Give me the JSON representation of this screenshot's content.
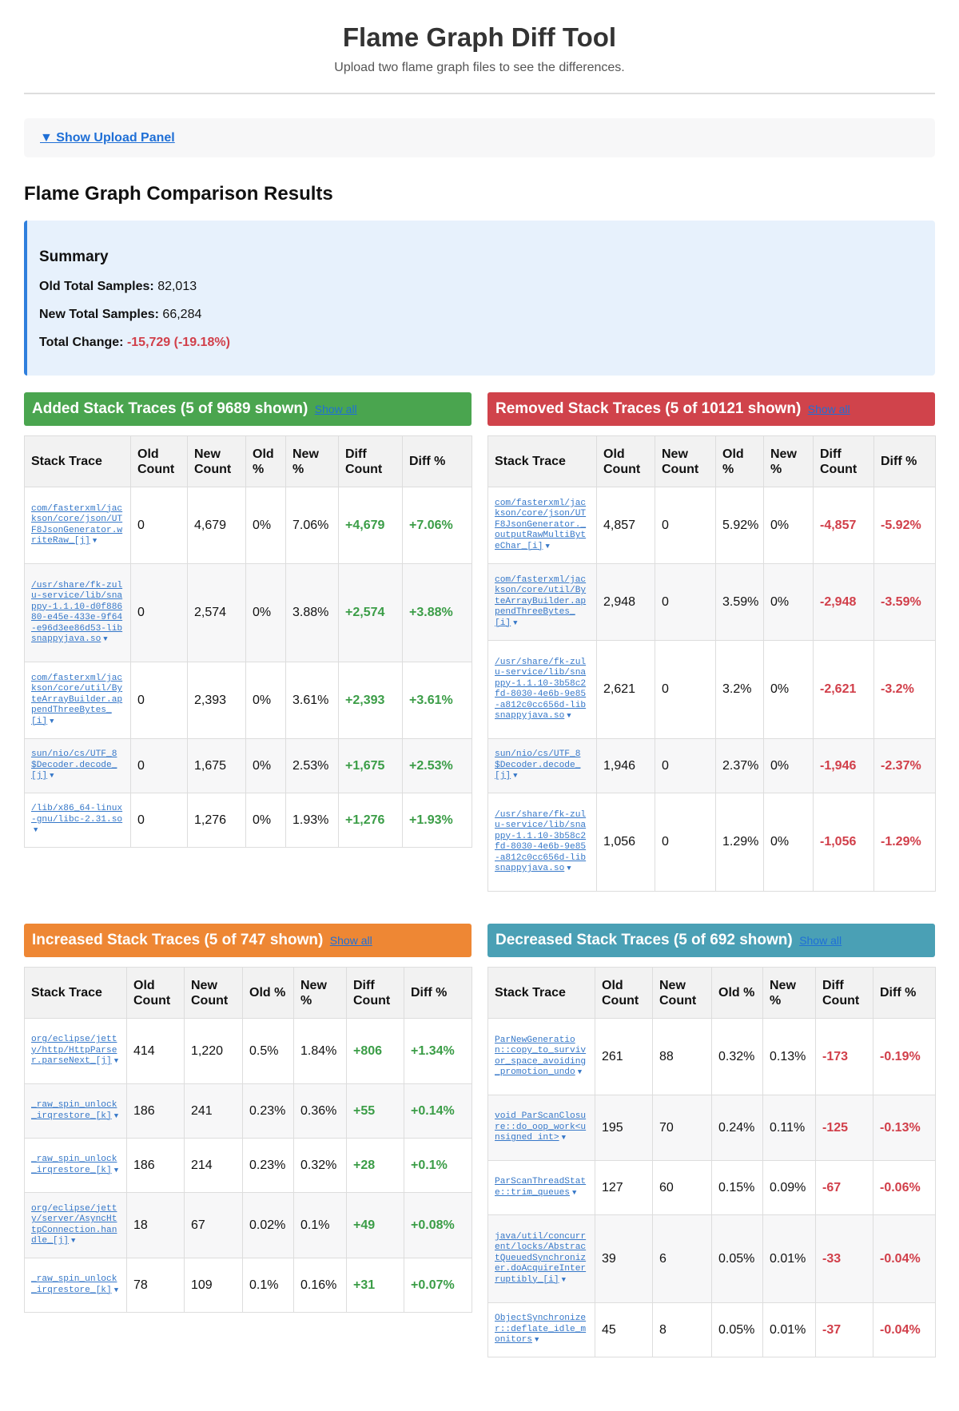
{
  "header": {
    "title": "Flame Graph Diff Tool",
    "subtitle": "Upload two flame graph files to see the differences."
  },
  "upload_panel": {
    "toggle_label": "▼ Show Upload Panel"
  },
  "results_heading": "Flame Graph Comparison Results",
  "summary": {
    "title": "Summary",
    "old_total_label": "Old Total Samples:",
    "old_total_value": "82,013",
    "new_total_label": "New Total Samples:",
    "new_total_value": "66,284",
    "total_change_label": "Total Change:",
    "total_change_value": "-15,729 (-19.18%)"
  },
  "columns": [
    "Stack Trace",
    "Old Count",
    "New Count",
    "Old %",
    "New %",
    "Diff Count",
    "Diff %"
  ],
  "show_all_label": "Show all",
  "expand_glyph": "▼",
  "colors": {
    "added": "#4aa54f",
    "removed": "#d0434b",
    "increased": "#ee8734",
    "decreased": "#4aa0b5",
    "positive": "#3b9d47",
    "negative": "#d13f4a",
    "link": "#3577c8"
  },
  "added": {
    "title": "Added Stack Traces (5 of 9689 shown)",
    "rows": [
      {
        "trace": "com/fasterxml/jackson/core/json/UTF8JsonGenerator.writeRaw_[j]",
        "old": "0",
        "new": "4,679",
        "old_pct": "0%",
        "new_pct": "7.06%",
        "diff": "+4,679",
        "diff_pct": "+7.06%"
      },
      {
        "trace": "/usr/share/fk-zulu-service/lib/snappy-1.1.10-d0f88680-e45e-433e-9f64-e96d3ee86d53-libsnappyjava.so",
        "old": "0",
        "new": "2,574",
        "old_pct": "0%",
        "new_pct": "3.88%",
        "diff": "+2,574",
        "diff_pct": "+3.88%"
      },
      {
        "trace": "com/fasterxml/jackson/core/util/ByteArrayBuilder.appendThreeBytes_[i]",
        "old": "0",
        "new": "2,393",
        "old_pct": "0%",
        "new_pct": "3.61%",
        "diff": "+2,393",
        "diff_pct": "+3.61%"
      },
      {
        "trace": "sun/nio/cs/UTF_8$Decoder.decode_[j]",
        "old": "0",
        "new": "1,675",
        "old_pct": "0%",
        "new_pct": "2.53%",
        "diff": "+1,675",
        "diff_pct": "+2.53%"
      },
      {
        "trace": "/lib/x86_64-linux-gnu/libc-2.31.so",
        "old": "0",
        "new": "1,276",
        "old_pct": "0%",
        "new_pct": "1.93%",
        "diff": "+1,276",
        "diff_pct": "+1.93%"
      }
    ]
  },
  "removed": {
    "title": "Removed Stack Traces (5 of 10121 shown)",
    "rows": [
      {
        "trace": "com/fasterxml/jackson/core/json/UTF8JsonGenerator._outputRawMultiByteChar_[i]",
        "old": "4,857",
        "new": "0",
        "old_pct": "5.92%",
        "new_pct": "0%",
        "diff": "-4,857",
        "diff_pct": "-5.92%"
      },
      {
        "trace": "com/fasterxml/jackson/core/util/ByteArrayBuilder.appendThreeBytes_[i]",
        "old": "2,948",
        "new": "0",
        "old_pct": "3.59%",
        "new_pct": "0%",
        "diff": "-2,948",
        "diff_pct": "-3.59%"
      },
      {
        "trace": "/usr/share/fk-zulu-service/lib/snappy-1.1.10-3b58c2fd-8030-4e6b-9e85-a812c0cc656d-libsnappyjava.so",
        "old": "2,621",
        "new": "0",
        "old_pct": "3.2%",
        "new_pct": "0%",
        "diff": "-2,621",
        "diff_pct": "-3.2%"
      },
      {
        "trace": "sun/nio/cs/UTF_8$Decoder.decode_[j]",
        "old": "1,946",
        "new": "0",
        "old_pct": "2.37%",
        "new_pct": "0%",
        "diff": "-1,946",
        "diff_pct": "-2.37%"
      },
      {
        "trace": "/usr/share/fk-zulu-service/lib/snappy-1.1.10-3b58c2fd-8030-4e6b-9e85-a812c0cc656d-libsnappyjava.so",
        "old": "1,056",
        "new": "0",
        "old_pct": "1.29%",
        "new_pct": "0%",
        "diff": "-1,056",
        "diff_pct": "-1.29%"
      }
    ]
  },
  "increased": {
    "title": "Increased Stack Traces (5 of 747 shown)",
    "rows": [
      {
        "trace": "org/eclipse/jetty/http/HttpParser.parseNext_[j]",
        "old": "414",
        "new": "1,220",
        "old_pct": "0.5%",
        "new_pct": "1.84%",
        "diff": "+806",
        "diff_pct": "+1.34%"
      },
      {
        "trace": "_raw_spin_unlock_irqrestore_[k]",
        "old": "186",
        "new": "241",
        "old_pct": "0.23%",
        "new_pct": "0.36%",
        "diff": "+55",
        "diff_pct": "+0.14%"
      },
      {
        "trace": "_raw_spin_unlock_irqrestore_[k]",
        "old": "186",
        "new": "214",
        "old_pct": "0.23%",
        "new_pct": "0.32%",
        "diff": "+28",
        "diff_pct": "+0.1%"
      },
      {
        "trace": "org/eclipse/jetty/server/AsyncHttpConnection.handle_[j]",
        "old": "18",
        "new": "67",
        "old_pct": "0.02%",
        "new_pct": "0.1%",
        "diff": "+49",
        "diff_pct": "+0.08%"
      },
      {
        "trace": "_raw_spin_unlock_irqrestore_[k]",
        "old": "78",
        "new": "109",
        "old_pct": "0.1%",
        "new_pct": "0.16%",
        "diff": "+31",
        "diff_pct": "+0.07%"
      }
    ]
  },
  "decreased": {
    "title": "Decreased Stack Traces (5 of 692 shown)",
    "rows": [
      {
        "trace": "ParNewGeneration::copy_to_survivor_space_avoiding_promotion_undo",
        "old": "261",
        "new": "88",
        "old_pct": "0.32%",
        "new_pct": "0.13%",
        "diff": "-173",
        "diff_pct": "-0.19%"
      },
      {
        "trace": "void ParScanClosure::do_oop_work<unsigned int>",
        "old": "195",
        "new": "70",
        "old_pct": "0.24%",
        "new_pct": "0.11%",
        "diff": "-125",
        "diff_pct": "-0.13%"
      },
      {
        "trace": "ParScanThreadState::trim_queues",
        "old": "127",
        "new": "60",
        "old_pct": "0.15%",
        "new_pct": "0.09%",
        "diff": "-67",
        "diff_pct": "-0.06%"
      },
      {
        "trace": "java/util/concurrent/locks/AbstractQueuedSynchronizer.doAcquireInterruptibly_[i]",
        "old": "39",
        "new": "6",
        "old_pct": "0.05%",
        "new_pct": "0.01%",
        "diff": "-33",
        "diff_pct": "-0.04%"
      },
      {
        "trace": "ObjectSynchronizer::deflate_idle_monitors",
        "old": "45",
        "new": "8",
        "old_pct": "0.05%",
        "new_pct": "0.01%",
        "diff": "-37",
        "diff_pct": "-0.04%"
      }
    ]
  }
}
